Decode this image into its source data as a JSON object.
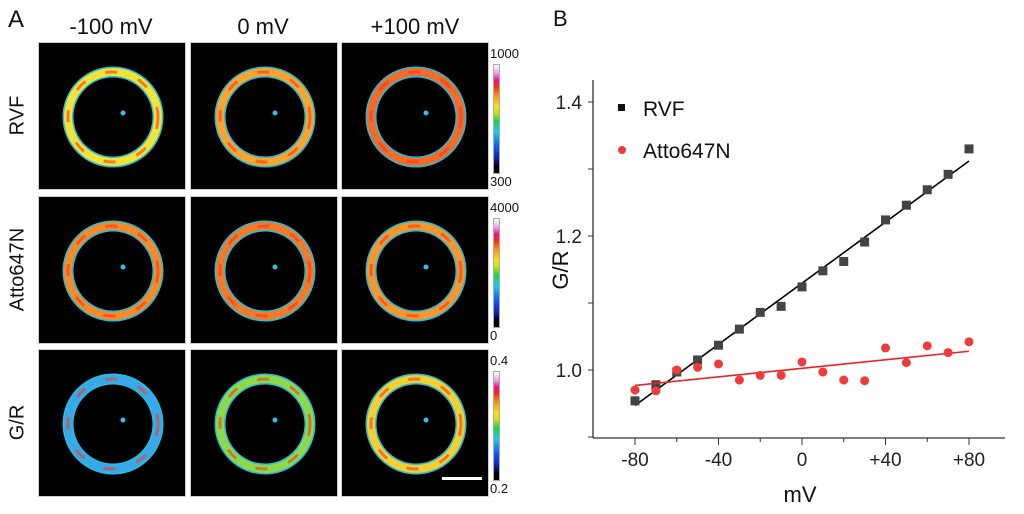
{
  "panel_a": {
    "label": "A",
    "columns": [
      "-100 mV",
      "0 mV",
      "+100 mV"
    ],
    "rows": [
      {
        "label": "RVF",
        "scale_max": "1000",
        "scale_min": "300",
        "colors": [
          "#f2e23a",
          "#f7a530",
          "#f46a2a"
        ]
      },
      {
        "label": "Atto647N",
        "scale_max": "4000",
        "scale_min": "0",
        "colors": [
          "#f58a2a",
          "#f27a2a",
          "#f5962e"
        ]
      },
      {
        "label": "G/R",
        "scale_max": "0.4",
        "scale_min": "0.2",
        "colors": [
          "#3aa8e8",
          "#8fd84a",
          "#f2cf35"
        ]
      }
    ]
  },
  "chart_data": {
    "type": "scatter",
    "panel_label": "B",
    "xlabel": "mV",
    "ylabel": "G/R",
    "xlim": [
      -100,
      90
    ],
    "ylim": [
      0.9,
      1.42
    ],
    "xticks": [
      -80,
      -40,
      0,
      40,
      80
    ],
    "xtick_labels": [
      "-80",
      "-40",
      "0",
      "+40",
      "+80"
    ],
    "yticks": [
      1.0,
      1.2,
      1.4
    ],
    "ytick_labels": [
      "1.0",
      "1.2",
      "1.4"
    ],
    "legend_position": "top-left",
    "grid": false,
    "series": [
      {
        "name": "RVF",
        "color": "#444444",
        "marker": "square",
        "x": [
          -80,
          -70,
          -60,
          -50,
          -40,
          -30,
          -20,
          -10,
          0,
          10,
          20,
          30,
          40,
          50,
          60,
          70,
          80
        ],
        "y": [
          0.954,
          0.978,
          0.997,
          1.015,
          1.037,
          1.061,
          1.086,
          1.095,
          1.124,
          1.148,
          1.162,
          1.191,
          1.224,
          1.246,
          1.269,
          1.292,
          1.33
        ],
        "fit": [
          [
            -80,
            0.947
          ],
          [
            80,
            1.312
          ]
        ],
        "fit_color": "#000000"
      },
      {
        "name": "Atto647N",
        "color": "#ee3b3b",
        "marker": "circle",
        "x": [
          -80,
          -70,
          -60,
          -50,
          -40,
          -30,
          -20,
          -10,
          0,
          10,
          20,
          30,
          40,
          50,
          60,
          70,
          80
        ],
        "y": [
          0.97,
          0.969,
          1.0,
          1.004,
          1.009,
          0.985,
          0.992,
          0.992,
          1.012,
          0.997,
          0.985,
          0.984,
          1.033,
          1.011,
          1.036,
          1.026,
          1.042
        ],
        "fit": [
          [
            -80,
            0.977
          ],
          [
            80,
            1.028
          ]
        ],
        "fit_color": "#ee2222"
      }
    ]
  }
}
